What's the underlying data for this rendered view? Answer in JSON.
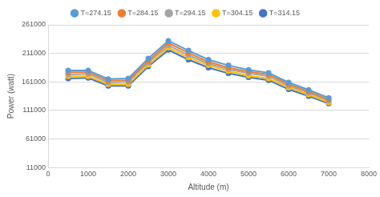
{
  "chart_data": {
    "type": "line",
    "x_label": "Altitude (m)",
    "y_label": "Power (watt)",
    "x": [
      500,
      1000,
      1500,
      2000,
      2500,
      3000,
      3500,
      4000,
      4500,
      5000,
      5500,
      6000,
      6500,
      7000
    ],
    "series": [
      {
        "name": "T=274.15",
        "color": "#5B9BD5",
        "values": [
          181000,
          181000,
          166000,
          167000,
          202000,
          233000,
          216000,
          200000,
          190000,
          182000,
          177000,
          160000,
          147000,
          133000
        ]
      },
      {
        "name": "T=284.15",
        "color": "#ED7D31",
        "values": [
          178000,
          178000,
          163000,
          164000,
          198000,
          229000,
          212000,
          196000,
          186000,
          179000,
          174000,
          157000,
          144000,
          130000
        ]
      },
      {
        "name": "T=294.15",
        "color": "#A5A5A5",
        "values": [
          174000,
          175000,
          160000,
          161000,
          195000,
          225000,
          208000,
          193000,
          183000,
          176000,
          171000,
          154000,
          142000,
          128000
        ]
      },
      {
        "name": "T=304.15",
        "color": "#FFC000",
        "values": [
          171000,
          171000,
          157000,
          157000,
          191000,
          221000,
          204000,
          190000,
          180000,
          172000,
          167000,
          151000,
          139000,
          125000
        ]
      },
      {
        "name": "T=314.15",
        "color": "#4472C4",
        "values": [
          167000,
          168000,
          154000,
          154000,
          188000,
          217000,
          200000,
          186000,
          176000,
          169000,
          164000,
          148000,
          136000,
          123000
        ]
      }
    ],
    "xlim": [
      0,
      8000
    ],
    "xticks": [
      0,
      1000,
      2000,
      3000,
      4000,
      5000,
      6000,
      7000,
      8000
    ],
    "ylim": [
      11000,
      261000
    ],
    "yticks": [
      11000,
      61000,
      111000,
      161000,
      211000,
      261000
    ],
    "grid": true,
    "legend": "top",
    "marker": "circle"
  }
}
